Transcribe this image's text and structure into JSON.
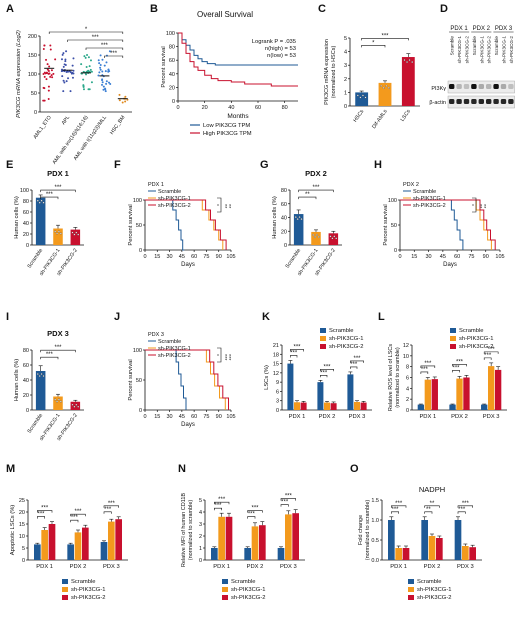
{
  "colors": {
    "blue": "#1f5a96",
    "orange": "#f39a1d",
    "red": "#c8102e",
    "navy": "#1f5a96",
    "text": "#111111"
  },
  "chart_data": [
    {
      "panel": "A",
      "type": "scatter",
      "ylabel": "PIK3CG mRNA expression (Log2)",
      "ylim": [
        0,
        200
      ],
      "yticks": [
        "0",
        "50",
        "100",
        "150",
        "200"
      ],
      "categories": [
        "AML1_ETO",
        "APL",
        "AML with inv(16)/t(16;16)",
        "AML with t(11q23)/MLL",
        "HSC_BM"
      ],
      "medians": [
        115,
        110,
        103,
        95,
        35
      ],
      "spread": [
        [
          30,
          175
        ],
        [
          55,
          160
        ],
        [
          60,
          150
        ],
        [
          55,
          160
        ],
        [
          25,
          45
        ]
      ],
      "colors": [
        "#c8102e",
        "#3b4fa8",
        "#2aa88a",
        "#3b7fd4",
        "#e08a1e"
      ],
      "significance": [
        "*",
        "***",
        "***",
        "***"
      ]
    },
    {
      "panel": "B",
      "type": "line",
      "title": "Overall Survival",
      "xlabel": "Months",
      "ylabel": "Percent survival",
      "xticks": [
        "0",
        "20",
        "40",
        "60",
        "80"
      ],
      "yticks": [
        "0",
        "20",
        "40",
        "60",
        "80",
        "100"
      ],
      "stats": [
        "Logrank P = .035",
        "n(high) = 53",
        "n(low) = 53"
      ],
      "series": [
        {
          "name": "Low PIK3CG TPM",
          "x": [
            0,
            3,
            6,
            9,
            12,
            15,
            18,
            22,
            28,
            35,
            45,
            60,
            80,
            90
          ],
          "y": [
            100,
            90,
            82,
            75,
            67,
            62,
            58,
            55,
            53,
            53,
            53,
            53,
            53,
            53
          ]
        },
        {
          "name": "High PIK3CG TPM",
          "x": [
            0,
            3,
            6,
            9,
            12,
            15,
            20,
            25,
            30,
            40,
            50,
            60,
            70,
            90
          ],
          "y": [
            100,
            85,
            70,
            58,
            50,
            45,
            38,
            33,
            30,
            28,
            25,
            25,
            22,
            22
          ]
        }
      ]
    },
    {
      "panel": "C",
      "type": "bar",
      "ylabel": "PIK3CG mRNA expression (normalized to HSCs)",
      "categories": [
        "HSCs",
        "Dif-AMLs",
        "LSCs"
      ],
      "values": [
        1.0,
        1.7,
        3.6
      ],
      "errors": [
        0.1,
        0.15,
        0.25
      ],
      "ylim": [
        0,
        5
      ],
      "yticks": [
        "0",
        "1",
        "2",
        "3",
        "4",
        "5"
      ],
      "significance": [
        "*",
        "***"
      ]
    },
    {
      "panel": "D",
      "type": "table",
      "groups": [
        "PDX 1",
        "PDX 2",
        "PDX 3"
      ],
      "lanes": [
        "Scramble",
        "sh-PIK3CG-1",
        "sh-PIK3CG-2",
        "Scramble",
        "sh-PIK3CG-1",
        "sh-PIK3CG-2",
        "Scramble",
        "sh-PIK3CG-1",
        "sh-PIK3CG-2"
      ],
      "rows": [
        "PI3Kγ",
        "β-actin"
      ],
      "pi3k_level": [
        1,
        0.25,
        0.2,
        1,
        0.3,
        0.25,
        1,
        0.3,
        0.2
      ]
    },
    {
      "panel": "E",
      "type": "bar",
      "title": "PDX 1",
      "ylabel": "Human cells (%)",
      "categories": [
        "Scramble",
        "sh-PIK3CG-1",
        "sh-PIK3CG-2"
      ],
      "values": [
        86,
        30,
        28
      ],
      "errors": [
        5,
        6,
        4
      ],
      "ylim": [
        0,
        100
      ],
      "yticks": [
        "0",
        "20",
        "40",
        "60",
        "80",
        "100"
      ],
      "significance": [
        "***",
        "***"
      ]
    },
    {
      "panel": "F",
      "type": "line",
      "title": "PDX 1",
      "xlabel": "Days",
      "ylabel": "Percent survival",
      "xticks": [
        "0",
        "15",
        "30",
        "45",
        "60",
        "75",
        "90",
        "105"
      ],
      "yticks": [
        "0",
        "50",
        "100"
      ],
      "series": [
        {
          "name": "Scramble",
          "x": [
            0,
            34,
            34,
            38,
            38,
            41,
            41,
            44,
            44,
            46,
            46,
            48
          ],
          "y": [
            100,
            100,
            80,
            80,
            60,
            60,
            40,
            40,
            20,
            20,
            0,
            0
          ]
        },
        {
          "name": "sh-PIK3CG-1",
          "x": [
            0,
            70,
            70,
            78,
            78,
            84,
            84,
            90,
            90,
            95,
            95
          ],
          "y": [
            100,
            100,
            80,
            80,
            60,
            60,
            40,
            40,
            20,
            20,
            0
          ]
        },
        {
          "name": "sh-PIK3CG-2",
          "x": [
            0,
            74,
            74,
            80,
            80,
            86,
            86,
            92,
            92,
            99,
            99
          ],
          "y": [
            100,
            100,
            80,
            80,
            60,
            60,
            40,
            40,
            20,
            20,
            0
          ]
        }
      ],
      "significance": [
        "**",
        "**"
      ]
    },
    {
      "panel": "G",
      "type": "bar",
      "title": "PDX 2",
      "ylabel": "Human cells (%)",
      "categories": [
        "Scramble",
        "sh-PIK3CG-1",
        "sh-PIK3CG-2"
      ],
      "values": [
        45,
        19,
        17
      ],
      "errors": [
        6,
        3,
        3
      ],
      "ylim": [
        0,
        80
      ],
      "yticks": [
        "0",
        "20",
        "40",
        "60",
        "80"
      ],
      "significance": [
        "**",
        "***"
      ]
    },
    {
      "panel": "H",
      "type": "line",
      "title": "PDX 2",
      "xlabel": "Days",
      "ylabel": "Percent survival",
      "xticks": [
        "0",
        "15",
        "30",
        "45",
        "60",
        "75",
        "90",
        "105"
      ],
      "yticks": [
        "0",
        "50",
        "100"
      ],
      "series": [
        {
          "name": "Scramble",
          "x": [
            0,
            54,
            54,
            57,
            57,
            60,
            60,
            63,
            63,
            66,
            66
          ],
          "y": [
            100,
            100,
            80,
            80,
            60,
            60,
            40,
            40,
            20,
            20,
            0
          ]
        },
        {
          "name": "sh-PIK3CG-1",
          "x": [
            0,
            80,
            80,
            84,
            84,
            88,
            88,
            92,
            92,
            96,
            96
          ],
          "y": [
            100,
            100,
            80,
            80,
            60,
            60,
            40,
            40,
            20,
            20,
            0
          ]
        },
        {
          "name": "sh-PIK3CG-2",
          "x": [
            0,
            84,
            84,
            88,
            88,
            91,
            91,
            95,
            95,
            100,
            100
          ],
          "y": [
            100,
            100,
            80,
            80,
            60,
            60,
            40,
            40,
            20,
            20,
            0
          ]
        }
      ],
      "significance": [
        "**",
        "**"
      ]
    },
    {
      "panel": "I",
      "type": "bar",
      "title": "PDX 3",
      "ylabel": "Human cells (%)",
      "categories": [
        "Scramble",
        "sh-PIK3CG-1",
        "sh-PIK3CG-2"
      ],
      "values": [
        52,
        18,
        11
      ],
      "errors": [
        7,
        3,
        2
      ],
      "ylim": [
        0,
        80
      ],
      "yticks": [
        "0",
        "20",
        "40",
        "60",
        "80"
      ],
      "significance": [
        "***",
        "***"
      ]
    },
    {
      "panel": "J",
      "type": "line",
      "title": "PDX 3",
      "xlabel": "Days",
      "ylabel": "Percent survival",
      "xticks": [
        "0",
        "15",
        "30",
        "45",
        "60",
        "75",
        "90",
        "105"
      ],
      "yticks": [
        "0",
        "50",
        "100"
      ],
      "series": [
        {
          "name": "Scramble",
          "x": [
            0,
            38,
            38,
            41,
            41,
            44,
            44,
            47,
            47,
            50,
            50
          ],
          "y": [
            100,
            100,
            80,
            80,
            60,
            60,
            40,
            40,
            20,
            20,
            0
          ]
        },
        {
          "name": "sh-PIK3CG-1",
          "x": [
            0,
            75,
            75,
            80,
            80,
            85,
            85,
            91,
            91,
            98,
            98
          ],
          "y": [
            100,
            100,
            80,
            80,
            60,
            60,
            40,
            40,
            20,
            20,
            0
          ]
        },
        {
          "name": "sh-PIK3CG-2",
          "x": [
            0,
            79,
            79,
            84,
            84,
            89,
            89,
            95,
            95,
            102,
            102
          ],
          "y": [
            100,
            100,
            80,
            80,
            60,
            60,
            40,
            40,
            20,
            20,
            0
          ]
        }
      ],
      "significance": [
        "***",
        "***"
      ]
    },
    {
      "panel": "K",
      "type": "bar",
      "ylabel": "LSCs (%)",
      "categories": [
        "PDX 1",
        "PDX 2",
        "PDX 3"
      ],
      "series": [
        {
          "name": "Scramble",
          "values": [
            15,
            9,
            11.5
          ],
          "errors": [
            1,
            0.6,
            0.8
          ]
        },
        {
          "name": "sh-PIK3CG-1",
          "values": [
            2.5,
            2.4,
            2.6
          ],
          "errors": [
            0.5,
            0.4,
            0.4
          ]
        },
        {
          "name": "sh-PIK3CG-2",
          "values": [
            2.4,
            2.2,
            2.4
          ],
          "errors": [
            0.4,
            0.4,
            0.4
          ]
        }
      ],
      "ylim": [
        0,
        21
      ],
      "yticks": [
        "0",
        "3",
        "6",
        "9",
        "12",
        "15",
        "18",
        "21"
      ],
      "significance": [
        "***",
        "***",
        "***"
      ]
    },
    {
      "panel": "L",
      "type": "bar",
      "ylabel": "Relative ROS level of LSCs (normalized to scramble)",
      "categories": [
        "PDX 1",
        "PDX 2",
        "PDX 3"
      ],
      "series": [
        {
          "name": "Scramble",
          "values": [
            1,
            1,
            1
          ],
          "errors": [
            0.1,
            0.1,
            0.1
          ]
        },
        {
          "name": "sh-PIK3CG-1",
          "values": [
            5.6,
            5.8,
            8.1
          ],
          "errors": [
            0.4,
            0.4,
            0.6
          ]
        },
        {
          "name": "sh-PIK3CG-2",
          "values": [
            5.7,
            6.0,
            7.4
          ],
          "errors": [
            0.4,
            0.4,
            0.6
          ]
        }
      ],
      "ylim": [
        0,
        12
      ],
      "yticks": [
        "0",
        "2",
        "4",
        "6",
        "8",
        "10",
        "12"
      ],
      "significance": [
        "***",
        "***",
        "***"
      ]
    },
    {
      "panel": "M",
      "type": "bar",
      "ylabel": "Apoptotic LSCs (%)",
      "categories": [
        "PDX 1",
        "PDX 2",
        "PDX 3"
      ],
      "series": [
        {
          "name": "Scramble",
          "values": [
            6.5,
            6.5,
            7.5
          ],
          "errors": [
            0.5,
            0.5,
            0.5
          ]
        },
        {
          "name": "sh-PIK3CG-1",
          "values": [
            12.5,
            11.5,
            16
          ],
          "errors": [
            1,
            1,
            1
          ]
        },
        {
          "name": "sh-PIK3CG-2",
          "values": [
            15,
            13.5,
            17
          ],
          "errors": [
            1,
            1,
            1
          ]
        }
      ],
      "ylim": [
        0,
        25
      ],
      "yticks": [
        "0",
        "5",
        "10",
        "15",
        "20",
        "25"
      ],
      "significance": [
        "***",
        "***",
        "***"
      ]
    },
    {
      "panel": "N",
      "type": "bar",
      "ylabel": "Relative MFI of human CD11B (normalized to scramble)",
      "categories": [
        "PDX 1",
        "PDX 2",
        "PDX 3"
      ],
      "series": [
        {
          "name": "Scramble",
          "values": [
            1,
            1,
            1
          ],
          "errors": [
            0.1,
            0.1,
            0.1
          ]
        },
        {
          "name": "sh-PIK3CG-1",
          "values": [
            3.6,
            2.8,
            3.8
          ],
          "errors": [
            0.3,
            0.3,
            0.3
          ]
        },
        {
          "name": "sh-PIK3CG-2",
          "values": [
            3.6,
            2.9,
            3.9
          ],
          "errors": [
            0.3,
            0.3,
            0.3
          ]
        }
      ],
      "ylim": [
        0,
        5
      ],
      "yticks": [
        "0",
        "1",
        "2",
        "3",
        "4",
        "5"
      ],
      "significance": [
        "***",
        "***",
        "***"
      ]
    },
    {
      "panel": "O",
      "type": "bar",
      "title": "NADPH",
      "ylabel": "Fold change (normalized to scramble)",
      "categories": [
        "PDX 1",
        "PDX 2",
        "PDX 3"
      ],
      "series": [
        {
          "name": "Scramble",
          "values": [
            1,
            1,
            1
          ],
          "errors": [
            0.08,
            0.08,
            0.08
          ]
        },
        {
          "name": "sh-PIK3CG-1",
          "values": [
            0.3,
            0.6,
            0.35
          ],
          "errors": [
            0.05,
            0.05,
            0.05
          ]
        },
        {
          "name": "sh-PIK3CG-2",
          "values": [
            0.3,
            0.55,
            0.32
          ],
          "errors": [
            0.05,
            0.05,
            0.05
          ]
        }
      ],
      "ylim": [
        0,
        1.5
      ],
      "yticks": [
        "0.0",
        "0.5",
        "1.0",
        "1.5"
      ],
      "significance": [
        "***",
        "**",
        "***"
      ]
    }
  ]
}
